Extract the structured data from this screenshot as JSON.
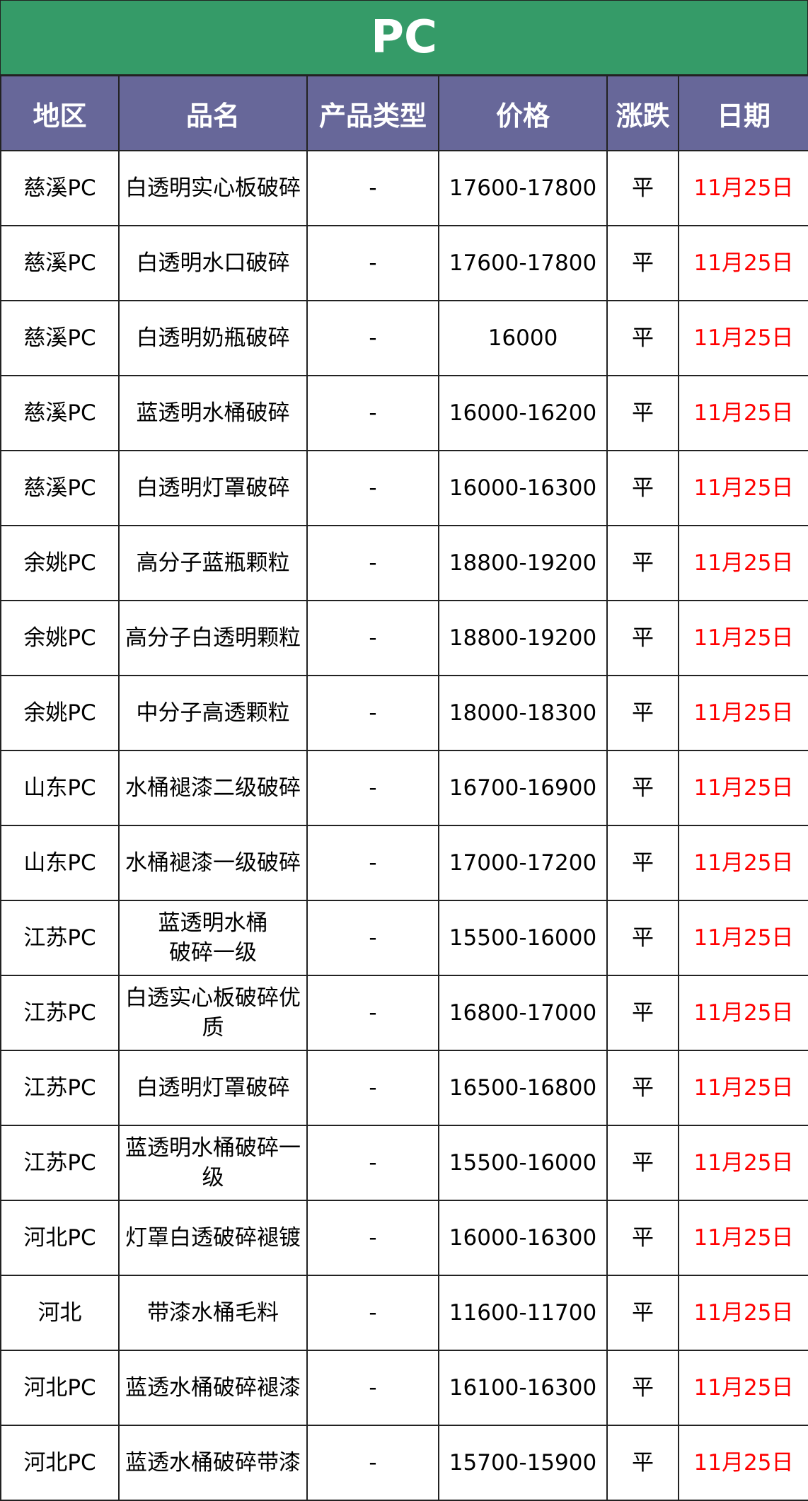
{
  "title": "PC",
  "colors": {
    "title_bg": "#359b68",
    "header_bg": "#676799",
    "date_text": "#ff0000"
  },
  "columns": [
    "地区",
    "品名",
    "产品类型",
    "价格",
    "涨跌",
    "日期"
  ],
  "rows": [
    {
      "region": "慈溪PC",
      "name": "白透明实心板破碎",
      "type": "-",
      "price": "17600-17800",
      "change": "平",
      "date": "11月25日"
    },
    {
      "region": "慈溪PC",
      "name": "白透明水口破碎",
      "type": "-",
      "price": "17600-17800",
      "change": "平",
      "date": "11月25日"
    },
    {
      "region": "慈溪PC",
      "name": "白透明奶瓶破碎",
      "type": "-",
      "price": "16000",
      "change": "平",
      "date": "11月25日"
    },
    {
      "region": "慈溪PC",
      "name": "蓝透明水桶破碎",
      "type": "-",
      "price": "16000-16200",
      "change": "平",
      "date": "11月25日"
    },
    {
      "region": "慈溪PC",
      "name": "白透明灯罩破碎",
      "type": "-",
      "price": "16000-16300",
      "change": "平",
      "date": "11月25日"
    },
    {
      "region": "余姚PC",
      "name": "高分子蓝瓶颗粒",
      "type": "-",
      "price": "18800-19200",
      "change": "平",
      "date": "11月25日"
    },
    {
      "region": "余姚PC",
      "name": "高分子白透明颗粒",
      "type": "-",
      "price": "18800-19200",
      "change": "平",
      "date": "11月25日"
    },
    {
      "region": "余姚PC",
      "name": "中分子高透颗粒",
      "type": "-",
      "price": "18000-18300",
      "change": "平",
      "date": "11月25日"
    },
    {
      "region": "山东PC",
      "name": "水桶褪漆二级破碎",
      "type": "-",
      "price": "16700-16900",
      "change": "平",
      "date": "11月25日"
    },
    {
      "region": "山东PC",
      "name": "水桶褪漆一级破碎",
      "type": "-",
      "price": "17000-17200",
      "change": "平",
      "date": "11月25日"
    },
    {
      "region": "江苏PC",
      "name": "蓝透明水桶\n破碎一级",
      "type": "-",
      "price": "15500-16000",
      "change": "平",
      "date": "11月25日"
    },
    {
      "region": "江苏PC",
      "name": "白透实心板破碎优质",
      "type": "-",
      "price": "16800-17000",
      "change": "平",
      "date": "11月25日"
    },
    {
      "region": "江苏PC",
      "name": "白透明灯罩破碎",
      "type": "-",
      "price": "16500-16800",
      "change": "平",
      "date": "11月25日"
    },
    {
      "region": "江苏PC",
      "name": "蓝透明水桶破碎一级",
      "type": "-",
      "price": "15500-16000",
      "change": "平",
      "date": "11月25日"
    },
    {
      "region": "河北PC",
      "name": "灯罩白透破碎褪镀",
      "type": "-",
      "price": "16000-16300",
      "change": "平",
      "date": "11月25日"
    },
    {
      "region": "河北",
      "name": "带漆水桶毛料",
      "type": "-",
      "price": "11600-11700",
      "change": "平",
      "date": "11月25日"
    },
    {
      "region": "河北PC",
      "name": "蓝透水桶破碎褪漆",
      "type": "-",
      "price": "16100-16300",
      "change": "平",
      "date": "11月25日"
    },
    {
      "region": "河北PC",
      "name": "蓝透水桶破碎带漆",
      "type": "-",
      "price": "15700-15900",
      "change": "平",
      "date": "11月25日"
    }
  ]
}
